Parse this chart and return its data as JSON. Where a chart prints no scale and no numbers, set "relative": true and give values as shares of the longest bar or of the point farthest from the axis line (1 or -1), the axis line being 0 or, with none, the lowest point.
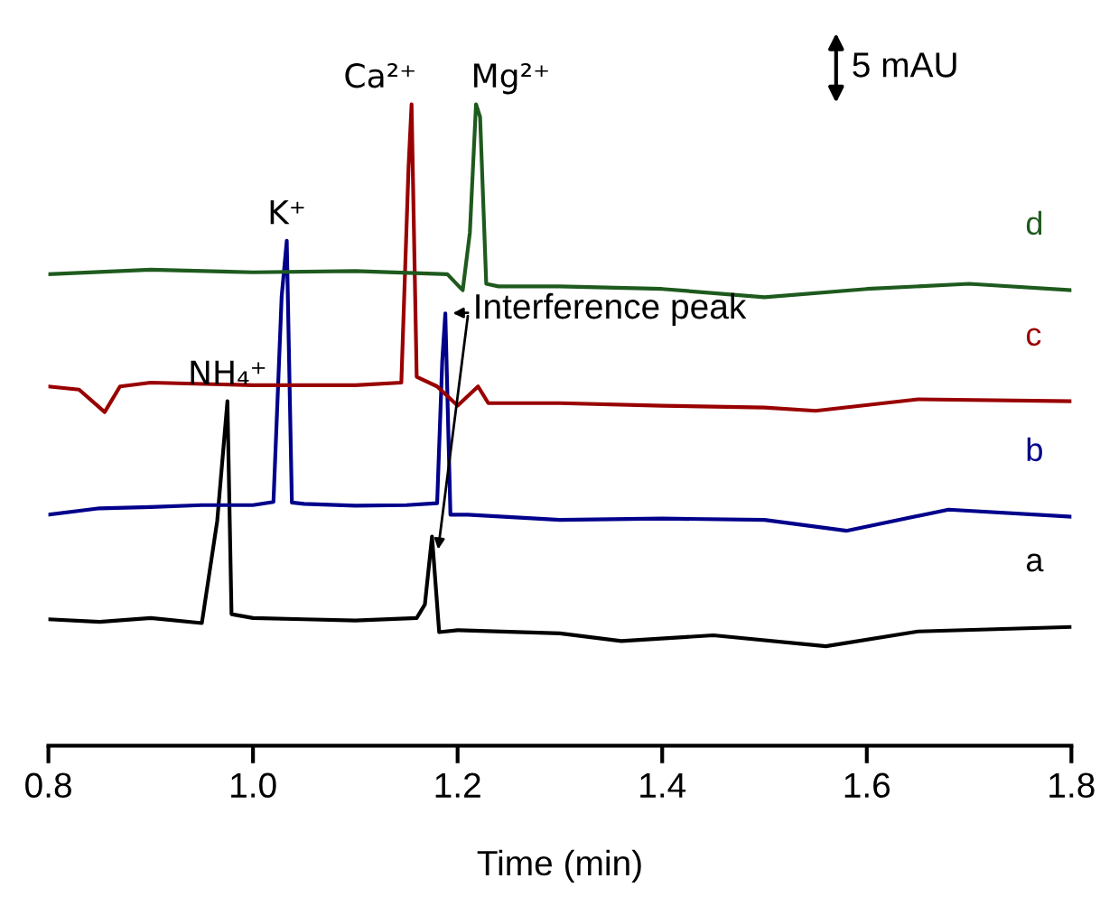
{
  "chart_data": {
    "type": "line",
    "relative": true,
    "xlabel": "Time (min)",
    "xlim": [
      0.8,
      1.8
    ],
    "xticks": [
      0.8,
      {
        "value": 1,
        "label": "1.0"
      },
      1.2,
      1.4,
      1.6,
      1.8
    ],
    "tick_labels": "x",
    "grid": false,
    "legend": false,
    "marker": "none",
    "line_style": "solid",
    "series": [
      {
        "name": "a",
        "color": "#000000",
        "x": [
          0.8,
          0.85,
          0.9,
          0.95,
          0.965,
          0.975,
          0.979,
          1.0,
          1.05,
          1.1,
          1.16,
          1.168,
          1.175,
          1.182,
          1.2,
          1.3,
          1.36,
          1.45,
          1.56,
          1.65,
          1.8
        ],
        "values": [
          0.197,
          0.193,
          0.199,
          0.191,
          0.35,
          0.537,
          0.205,
          0.199,
          0.197,
          0.195,
          0.199,
          0.22,
          0.326,
          0.177,
          0.18,
          0.175,
          0.163,
          0.172,
          0.155,
          0.178,
          0.185
        ]
      },
      {
        "name": "b",
        "color": "#00008b",
        "x": [
          0.8,
          0.85,
          0.9,
          0.95,
          1.0,
          1.02,
          1.028,
          1.033,
          1.038,
          1.05,
          1.1,
          1.15,
          1.18,
          1.185,
          1.188,
          1.193,
          1.21,
          1.3,
          1.4,
          1.5,
          1.58,
          1.68,
          1.8
        ],
        "values": [
          0.36,
          0.37,
          0.372,
          0.375,
          0.375,
          0.38,
          0.7,
          0.787,
          0.379,
          0.377,
          0.374,
          0.375,
          0.378,
          0.6,
          0.674,
          0.36,
          0.36,
          0.352,
          0.354,
          0.352,
          0.335,
          0.368,
          0.357
        ]
      },
      {
        "name": "c",
        "color": "#990000",
        "x": [
          0.8,
          0.83,
          0.855,
          0.87,
          0.9,
          1.0,
          1.1,
          1.145,
          1.152,
          1.155,
          1.16,
          1.18,
          1.2,
          1.22,
          1.23,
          1.3,
          1.4,
          1.5,
          1.55,
          1.65,
          1.8
        ],
        "values": [
          0.56,
          0.555,
          0.52,
          0.56,
          0.566,
          0.562,
          0.562,
          0.566,
          0.9,
          1.0,
          0.575,
          0.56,
          0.53,
          0.56,
          0.534,
          0.534,
          0.53,
          0.527,
          0.522,
          0.54,
          0.537
        ]
      },
      {
        "name": "d",
        "color": "#1e5a1e",
        "x": [
          0.8,
          0.9,
          1.0,
          1.1,
          1.19,
          1.205,
          1.212,
          1.218,
          1.222,
          1.228,
          1.24,
          1.3,
          1.4,
          1.5,
          1.6,
          1.7,
          1.8
        ],
        "values": [
          0.735,
          0.742,
          0.738,
          0.74,
          0.735,
          0.71,
          0.8,
          1.0,
          0.98,
          0.72,
          0.716,
          0.716,
          0.712,
          0.699,
          0.712,
          0.72,
          0.71
        ]
      }
    ],
    "annotations": [
      {
        "text": "NH₄⁺",
        "x": 0.975,
        "y": 0.537
      },
      {
        "text": "K⁺",
        "x": 1.033,
        "y": 0.787
      },
      {
        "text": "Ca²⁺",
        "x": 1.155,
        "y": 1.0
      },
      {
        "text": "Mg²⁺",
        "x": 1.218,
        "y": 1.0
      },
      {
        "text": "Interference peak",
        "x": 1.188,
        "y": 0.674
      },
      "5 mAU"
    ]
  }
}
